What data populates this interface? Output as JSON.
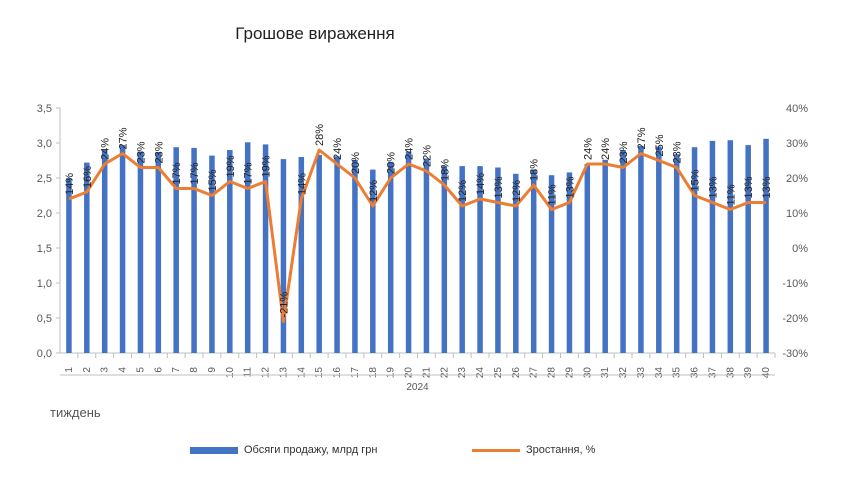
{
  "chart_data": {
    "type": "bar+line",
    "title": "Грошове вираження",
    "xlabel": "тиждень",
    "year_label": "2024",
    "categories": [
      "1",
      "2",
      "3",
      "4",
      "5",
      "6",
      "7",
      "8",
      "9",
      "10",
      "11",
      "12",
      "13",
      "14",
      "15",
      "16",
      "17",
      "18",
      "19",
      "20",
      "21",
      "22",
      "23",
      "24",
      "25",
      "26",
      "27",
      "28",
      "29",
      "30",
      "31",
      "32",
      "33",
      "34",
      "35",
      "36",
      "37",
      "38",
      "39",
      "40"
    ],
    "series": [
      {
        "name": "Обсяги продажу, млрд грн",
        "type": "bar",
        "axis": "left",
        "color": "#4472C4",
        "values": [
          2.5,
          2.72,
          2.9,
          2.97,
          2.88,
          2.87,
          2.94,
          2.93,
          2.82,
          2.9,
          3.01,
          2.98,
          2.77,
          2.8,
          2.83,
          2.81,
          2.76,
          2.62,
          2.73,
          2.88,
          2.78,
          2.67,
          2.67,
          2.67,
          2.65,
          2.56,
          2.62,
          2.54,
          2.58,
          2.7,
          2.76,
          2.9,
          2.96,
          2.95,
          2.84,
          2.94,
          3.03,
          3.04,
          2.97,
          3.06
        ]
      },
      {
        "name": "Зростання, %",
        "type": "line",
        "axis": "right",
        "color": "#ED7D31",
        "values": [
          14,
          16,
          24,
          27,
          23,
          23,
          17,
          17,
          15,
          19,
          17,
          19,
          -21,
          14,
          28,
          24,
          20,
          12,
          20,
          24,
          22,
          18,
          12,
          14,
          13,
          12,
          18,
          11,
          13,
          24,
          24,
          23,
          27,
          25,
          23,
          15,
          13,
          11,
          13,
          13
        ],
        "labels": [
          "14%",
          "16%",
          "24%",
          "27%",
          "23%",
          "23%",
          "17%",
          "17%",
          "15%",
          "19%",
          "17%",
          "19%",
          "-21%",
          "14%",
          "28%",
          "24%",
          "20%",
          "12%",
          "20%",
          "24%",
          "22%",
          "18%",
          "12%",
          "14%",
          "13%",
          "12%",
          "18%",
          "11%",
          "13%",
          "24%",
          "24%",
          "23%",
          "27%",
          "25%",
          "23%",
          "15%",
          "13%",
          "11%",
          "13%",
          "13%"
        ]
      }
    ],
    "y_left": {
      "min": 0,
      "max": 3.5,
      "step": 0.5,
      "ticks": [
        "0,0",
        "0,5",
        "1,0",
        "1,5",
        "2,0",
        "2,5",
        "3,0",
        "3,5"
      ]
    },
    "y_right": {
      "min": -30,
      "max": 40,
      "step": 10,
      "ticks": [
        "-30%",
        "-20%",
        "-10%",
        "0%",
        "10%",
        "20%",
        "30%",
        "40%"
      ]
    },
    "grid": false,
    "legend_position": "bottom"
  }
}
